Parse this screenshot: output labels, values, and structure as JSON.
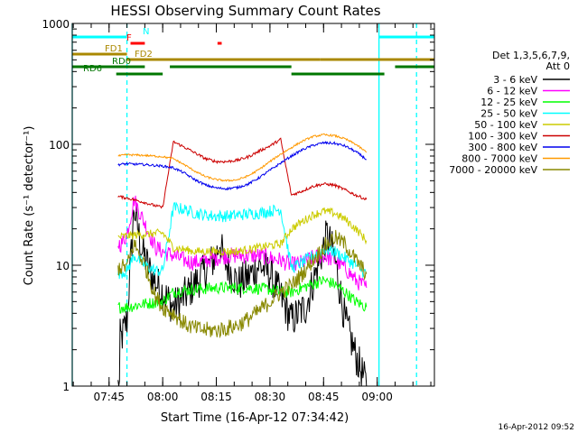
{
  "chart_data": {
    "type": "line",
    "title": "HESSI Observing Summary Count Rates",
    "xlabel": "Start Time (16-Apr-12 07:34:42)",
    "ylabel": "Count Rate (s⁻¹ detector⁻¹)",
    "yscale": "log",
    "ylim": [
      1,
      1000
    ],
    "yticks": [
      {
        "value": 1,
        "label": "1"
      },
      {
        "value": 10,
        "label": "10"
      },
      {
        "value": 100,
        "label": "100"
      },
      {
        "value": 1000,
        "label": "1000"
      }
    ],
    "xlim": [
      "07:34:42",
      "09:16:00"
    ],
    "xticks": [
      {
        "value": "07:45",
        "label": "07:45"
      },
      {
        "value": "08:00",
        "label": "08:00"
      },
      {
        "value": "08:15",
        "label": "08:15"
      },
      {
        "value": "08:30",
        "label": "08:30"
      },
      {
        "value": "08:45",
        "label": "08:45"
      },
      {
        "value": "09:00",
        "label": "09:00"
      }
    ],
    "legend": {
      "position": "right",
      "header_lines": [
        "Det 1,3,5,6,7,9,",
        "Att 0"
      ]
    },
    "series": [
      {
        "name": "3 - 6 keV",
        "color": "#000000",
        "x": [
          "07:47:30",
          "07:48:30",
          "07:50",
          "07:52",
          "07:54",
          "07:57",
          "08:00",
          "08:03",
          "08:06",
          "08:09",
          "08:12",
          "08:15",
          "08:16",
          "08:17",
          "08:19",
          "08:21",
          "08:24",
          "08:27",
          "08:30",
          "08:33",
          "08:36",
          "08:40",
          "08:43",
          "08:45",
          "08:46",
          "08:48",
          "08:51",
          "08:54",
          "08:57"
        ],
        "y": [
          1,
          2.5,
          3.5,
          30,
          14,
          8,
          6,
          4.5,
          5.5,
          7,
          9,
          12,
          16,
          11,
          9,
          7,
          8,
          10,
          8.5,
          5.5,
          3.5,
          4.5,
          9,
          14,
          18,
          12,
          3.5,
          1.8,
          1
        ]
      },
      {
        "name": "6 - 12 keV",
        "color": "#ff00ff",
        "x": [
          "07:47:30",
          "07:48:30",
          "07:50",
          "07:52",
          "07:55",
          "07:58",
          "08:00",
          "08:03",
          "08:06",
          "08:09",
          "08:12",
          "08:15",
          "08:18",
          "08:21",
          "08:24",
          "08:27",
          "08:30",
          "08:33",
          "08:36",
          "08:39",
          "08:42",
          "08:45",
          "08:48",
          "08:51",
          "08:54",
          "08:57"
        ],
        "y": [
          15,
          15,
          18,
          35,
          22,
          14,
          13,
          12,
          11,
          10.5,
          11,
          11.5,
          12,
          12,
          12,
          12,
          11.5,
          11,
          10,
          10.5,
          11.5,
          12,
          11,
          9.5,
          7.5,
          6.5
        ]
      },
      {
        "name": "12 - 25 keV",
        "color": "#00ff00",
        "x": [
          "07:47:30",
          "07:50",
          "07:55",
          "08:00",
          "08:03",
          "08:06",
          "08:09",
          "08:12",
          "08:15",
          "08:18",
          "08:21",
          "08:24",
          "08:27",
          "08:30",
          "08:33",
          "08:36",
          "08:39",
          "08:42",
          "08:45",
          "08:48",
          "08:51",
          "08:54",
          "08:57"
        ],
        "y": [
          4.5,
          4.5,
          4.8,
          5.0,
          6.0,
          6.2,
          6.3,
          6.4,
          6.5,
          6.5,
          6.5,
          6.5,
          6.4,
          6.3,
          6.0,
          6.0,
          6.5,
          7.0,
          7.5,
          7.0,
          6.0,
          5.0,
          4.5
        ]
      },
      {
        "name": "25 - 50 keV",
        "color": "#00ffff",
        "x": [
          "07:47:30",
          "07:50",
          "07:52",
          "07:55",
          "07:58",
          "08:00",
          "08:03",
          "08:06",
          "08:09",
          "08:12",
          "08:15",
          "08:18",
          "08:21",
          "08:24",
          "08:27",
          "08:30",
          "08:33",
          "08:36",
          "08:39",
          "08:42",
          "08:45",
          "08:48",
          "08:51",
          "08:54",
          "08:57"
        ],
        "y": [
          8.5,
          9,
          12,
          10,
          9,
          9,
          30,
          29,
          27,
          26,
          25.5,
          25.5,
          26,
          26.5,
          27,
          28,
          29,
          9.5,
          10.5,
          12,
          13.5,
          13,
          11.5,
          10,
          8.5
        ]
      },
      {
        "name": "50 - 100 keV",
        "color": "#cccc00",
        "x": [
          "07:47:30",
          "07:50",
          "07:55",
          "08:00",
          "08:03",
          "08:06",
          "08:09",
          "08:12",
          "08:15",
          "08:18",
          "08:21",
          "08:24",
          "08:27",
          "08:30",
          "08:33",
          "08:36",
          "08:39",
          "08:42",
          "08:45",
          "08:48",
          "08:51",
          "08:54",
          "08:57"
        ],
        "y": [
          17,
          17.5,
          18,
          18.5,
          14,
          13.5,
          13,
          13,
          13,
          13,
          13,
          13.5,
          14,
          14.5,
          15,
          20,
          23,
          26,
          28,
          27,
          24,
          20,
          16
        ]
      },
      {
        "name": "100 - 300 keV",
        "color": "#cc0000",
        "x": [
          "07:47:30",
          "07:50",
          "07:55",
          "07:58",
          "08:00",
          "08:03",
          "08:06",
          "08:09",
          "08:12",
          "08:15",
          "08:18",
          "08:21",
          "08:24",
          "08:27",
          "08:30",
          "08:33",
          "08:36",
          "08:39",
          "08:42",
          "08:45",
          "08:48",
          "08:51",
          "08:54",
          "08:57"
        ],
        "y": [
          37,
          36,
          33,
          31,
          30,
          105,
          95,
          85,
          76,
          72,
          72,
          74,
          79,
          88,
          97,
          110,
          38,
          41,
          45,
          47,
          46,
          42,
          38,
          35
        ]
      },
      {
        "name": "300 - 800 keV",
        "color": "#0000ee",
        "x": [
          "07:47:30",
          "07:50",
          "07:55",
          "08:00",
          "08:03",
          "08:06",
          "08:09",
          "08:12",
          "08:15",
          "08:18",
          "08:21",
          "08:24",
          "08:27",
          "08:30",
          "08:33",
          "08:36",
          "08:39",
          "08:42",
          "08:45",
          "08:48",
          "08:51",
          "08:54",
          "08:57"
        ],
        "y": [
          68,
          69,
          68,
          66,
          64,
          58,
          51,
          46,
          43.5,
          43,
          44,
          47,
          53,
          61,
          70,
          80,
          90,
          98,
          103,
          102,
          97,
          87,
          75
        ]
      },
      {
        "name": "800 - 7000 keV",
        "color": "#ff9900",
        "x": [
          "07:47:30",
          "07:50",
          "07:55",
          "08:00",
          "08:03",
          "08:06",
          "08:09",
          "08:12",
          "08:15",
          "08:18",
          "08:21",
          "08:24",
          "08:27",
          "08:30",
          "08:33",
          "08:36",
          "08:39",
          "08:42",
          "08:45",
          "08:48",
          "08:51",
          "08:54",
          "08:57"
        ],
        "y": [
          80,
          82,
          81,
          79,
          76,
          68,
          60,
          54,
          51,
          50,
          51,
          55,
          62,
          72,
          83,
          94,
          106,
          116,
          120,
          118,
          111,
          100,
          86
        ]
      },
      {
        "name": "7000 - 20000 keV",
        "color": "#888800",
        "x": [
          "07:47:30",
          "07:50",
          "07:52",
          "07:55",
          "07:58",
          "08:00",
          "08:03",
          "08:06",
          "08:09",
          "08:12",
          "08:15",
          "08:18",
          "08:21",
          "08:24",
          "08:27",
          "08:30",
          "08:33",
          "08:36",
          "08:39",
          "08:42",
          "08:45",
          "08:48",
          "08:51",
          "08:54",
          "08:57"
        ],
        "y": [
          9.5,
          9.8,
          15,
          10,
          5.5,
          4.5,
          4.0,
          3.3,
          3.0,
          2.9,
          2.9,
          3.0,
          3.2,
          3.6,
          4.2,
          5.0,
          6.0,
          6.8,
          8.5,
          11,
          14,
          17,
          15,
          11,
          8.5
        ]
      }
    ],
    "flag_bars": [
      {
        "label": "N",
        "color": "#00ffff",
        "segments": [
          [
            "07:34:42",
            "07:50:00"
          ],
          [
            "09:00:30",
            "09:16:00"
          ]
        ]
      },
      {
        "label": "F",
        "color": "#ff0000",
        "segments": [
          [
            "07:51:00",
            "07:55:00"
          ],
          [
            "08:15:20",
            "08:16:30"
          ]
        ]
      },
      {
        "label": "FD1",
        "color": "#aa8800",
        "segments": [
          [
            "07:34:42",
            "07:50:00"
          ]
        ]
      },
      {
        "label": "FD2",
        "color": "#aa8800",
        "segments": [
          [
            "07:50:00",
            "08:44:00"
          ],
          [
            "08:44:00",
            "09:16:00"
          ]
        ]
      },
      {
        "label": "RD0",
        "color": "#007700",
        "segments": [
          [
            "07:34:42",
            "07:55:00"
          ],
          [
            "08:02:00",
            "08:36:00"
          ],
          [
            "09:05:00",
            "09:16:00"
          ]
        ]
      },
      {
        "label": "RD6",
        "color": "#007700",
        "segments": [
          [
            "07:47:00",
            "08:00:00"
          ],
          [
            "08:36:00",
            "09:02:00"
          ]
        ]
      }
    ],
    "vertical_markers": [
      {
        "time": "07:34:42",
        "style": "solid",
        "color": "#00ffff"
      },
      {
        "time": "07:50:00",
        "style": "dashed",
        "color": "#00ffff"
      },
      {
        "time": "09:00:30",
        "style": "solid",
        "color": "#00ffff"
      },
      {
        "time": "09:11:00",
        "style": "dashed",
        "color": "#00ffff"
      }
    ]
  },
  "footer": {
    "timestamp": "16-Apr-2012 09:52"
  }
}
